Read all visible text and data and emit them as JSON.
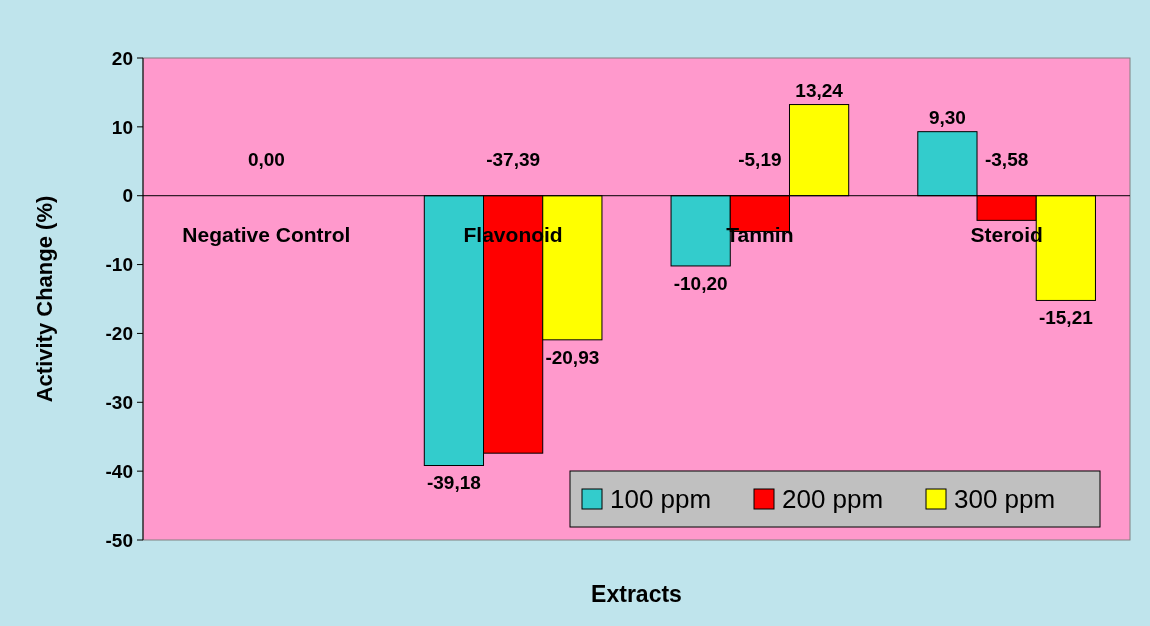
{
  "chart_data": {
    "type": "bar",
    "xlabel": "Extracts",
    "ylabel": "Activity Change (%)",
    "categories": [
      "Negative Control",
      "Flavonoid",
      "Tannin",
      "Steroid"
    ],
    "series": [
      {
        "name": "100 ppm",
        "color": "#33cccc",
        "values": [
          0,
          -39.18,
          -10.2,
          9.3
        ],
        "value_labels": [
          null,
          "-39,18",
          "-10,20",
          "9,30"
        ]
      },
      {
        "name": "200 ppm",
        "color": "#ff0000",
        "values": [
          0,
          -37.39,
          -5.19,
          -3.58
        ],
        "value_labels": [
          "0,00",
          "-37,39",
          "-5,19",
          "-3,58"
        ]
      },
      {
        "name": "300 ppm",
        "color": "#ffff00",
        "values": [
          0,
          -20.93,
          13.24,
          -15.21
        ],
        "value_labels": [
          null,
          "-20,93",
          "13,24",
          "-15,21"
        ]
      }
    ],
    "ylim": [
      -50,
      20
    ],
    "yticks": [
      -50,
      -40,
      -30,
      -20,
      -10,
      0,
      10,
      20
    ],
    "legend": "bottom right"
  }
}
